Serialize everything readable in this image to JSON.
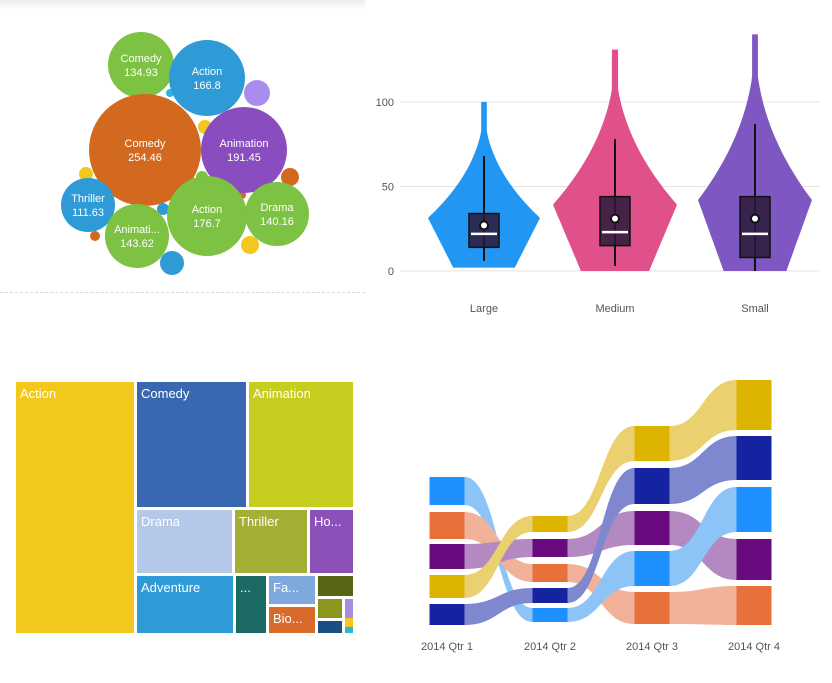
{
  "chart_data": [
    {
      "type": "bubble",
      "title": "",
      "bubbles": [
        {
          "label": "Comedy",
          "value": "134.93",
          "color": "#7dc242"
        },
        {
          "label": "Action",
          "value": "166.8",
          "color": "#2e9bd6"
        },
        {
          "label": "Comedy",
          "value": "254.46",
          "color": "#d2691e"
        },
        {
          "label": "Animation",
          "value": "191.45",
          "color": "#8a4dbf"
        },
        {
          "label": "Thriller",
          "value": "111.63",
          "color": "#2e9bd6"
        },
        {
          "label": "Animati...",
          "value": "143.62",
          "color": "#7dc242"
        },
        {
          "label": "Action",
          "value": "176.7",
          "color": "#7dc242"
        },
        {
          "label": "Drama",
          "value": "140.16",
          "color": "#7dc242"
        }
      ]
    },
    {
      "type": "violin",
      "title": "",
      "categories": [
        "Large",
        "Medium",
        "Small"
      ],
      "colors": [
        "#2196f3",
        "#e0508a",
        "#7e57c2"
      ],
      "y_ticks": [
        "0",
        "50",
        "100"
      ],
      "ylim": [
        0,
        140
      ],
      "grid": true,
      "stats": [
        {
          "min": 6,
          "q1": 14,
          "median": 22,
          "q3": 34,
          "max": 68,
          "mean": 27,
          "top": 100
        },
        {
          "min": 3,
          "q1": 15,
          "median": 23,
          "q3": 44,
          "max": 78,
          "mean": 31,
          "top": 131
        },
        {
          "min": 0,
          "q1": 8,
          "median": 22,
          "q3": 44,
          "max": 87,
          "mean": 31,
          "top": 140
        }
      ]
    },
    {
      "type": "treemap",
      "title": "",
      "tiles": [
        {
          "label": "Action",
          "color": "#f2c81c"
        },
        {
          "label": "Comedy",
          "color": "#3a68b0"
        },
        {
          "label": "Animation",
          "color": "#c5cd1f"
        },
        {
          "label": "Drama",
          "color": "#b4c8ea"
        },
        {
          "label": "Thriller",
          "color": "#a5ae35"
        },
        {
          "label": "Ho...",
          "color": "#8b51b8"
        },
        {
          "label": "Adventure",
          "color": "#2f9bd6"
        },
        {
          "label": "...",
          "color": "#1b6b64"
        },
        {
          "label": "Fa...",
          "color": "#7fa8dd"
        },
        {
          "label": "Bio...",
          "color": "#d86a2c"
        },
        {
          "label": "",
          "color": "#5a6415"
        },
        {
          "label": "",
          "color": "#8c961f"
        },
        {
          "label": "",
          "color": "#f2c81c"
        },
        {
          "label": "",
          "color": "#1a4f83"
        },
        {
          "label": "",
          "color": "#a98cdc"
        },
        {
          "label": "",
          "color": "#2ab7d5"
        }
      ]
    },
    {
      "type": "ribbon",
      "title": "",
      "categories": [
        "2014 Qtr 1",
        "2014 Qtr 2",
        "2014 Qtr 3",
        "2014 Qtr 4"
      ],
      "series_colors": [
        "#1e90ff",
        "#e8703a",
        "#6a0a7f",
        "#ddb400",
        "#1423a0"
      ]
    }
  ]
}
